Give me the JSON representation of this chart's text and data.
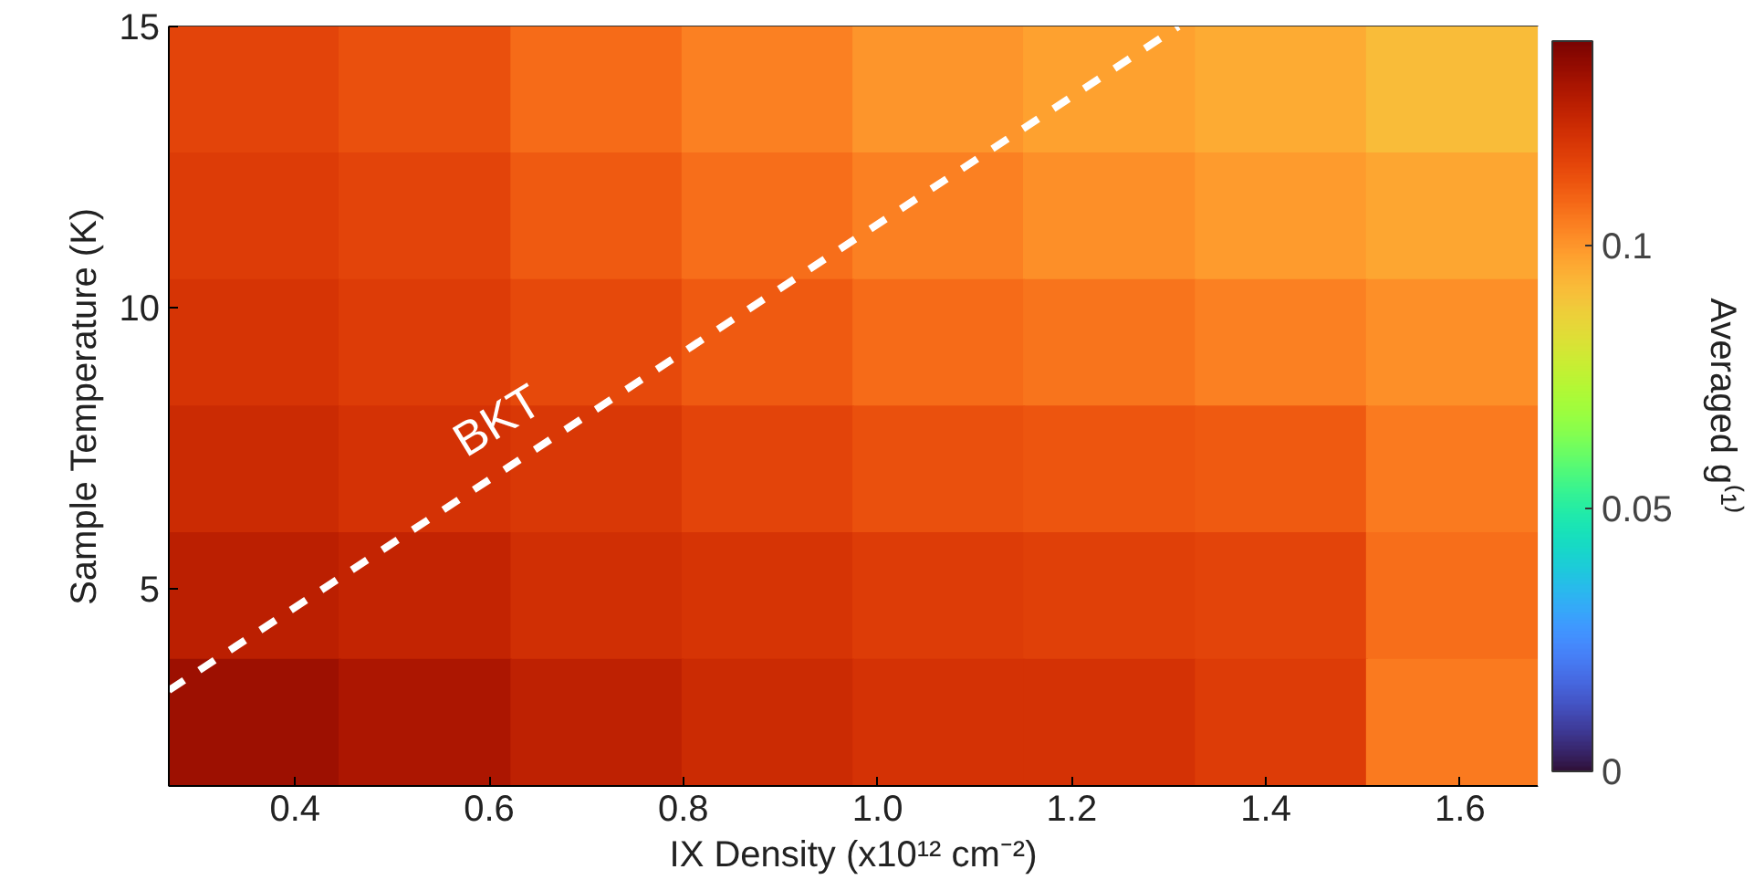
{
  "chart_data": {
    "type": "heatmap",
    "xlabel": "IX Density (x10¹² cm⁻²)",
    "ylabel": "Sample Temperature (K)",
    "clabel": "Averaged g⁽¹⁾",
    "x": [
      0.358,
      0.534,
      0.711,
      0.887,
      1.063,
      1.239,
      1.416,
      1.592
    ],
    "y": [
      13.875,
      11.625,
      9.375,
      7.125,
      4.875,
      2.625
    ],
    "cells": [
      [
        0.116,
        0.113,
        0.108,
        0.104,
        0.1,
        0.098,
        0.096,
        0.092
      ],
      [
        0.118,
        0.116,
        0.111,
        0.107,
        0.104,
        0.101,
        0.099,
        0.097
      ],
      [
        0.12,
        0.118,
        0.115,
        0.111,
        0.108,
        0.106,
        0.104,
        0.101
      ],
      [
        0.123,
        0.121,
        0.119,
        0.116,
        0.113,
        0.112,
        0.111,
        0.105
      ],
      [
        0.127,
        0.125,
        0.122,
        0.12,
        0.118,
        0.117,
        0.116,
        0.107
      ],
      [
        0.133,
        0.13,
        0.126,
        0.123,
        0.121,
        0.121,
        0.118,
        0.105
      ]
    ],
    "xlim": [
      0.27,
      1.68
    ],
    "xticks": [
      0.4,
      0.6,
      0.8,
      {
        "value": 1.0,
        "label": "1.0"
      },
      1.2,
      1.4,
      1.6
    ],
    "ylim": [
      1.5,
      15
    ],
    "yticks": [
      5,
      10,
      15
    ],
    "clim": [
      0,
      0.139
    ],
    "cticks": [
      0,
      0.05,
      0.1
    ],
    "series": [
      {
        "type": "line",
        "name": "BKT",
        "color": "#ffffff",
        "line_style": "dashed",
        "x": [
          0.27,
          1.31
        ],
        "values": [
          3.2,
          15
        ]
      }
    ]
  }
}
